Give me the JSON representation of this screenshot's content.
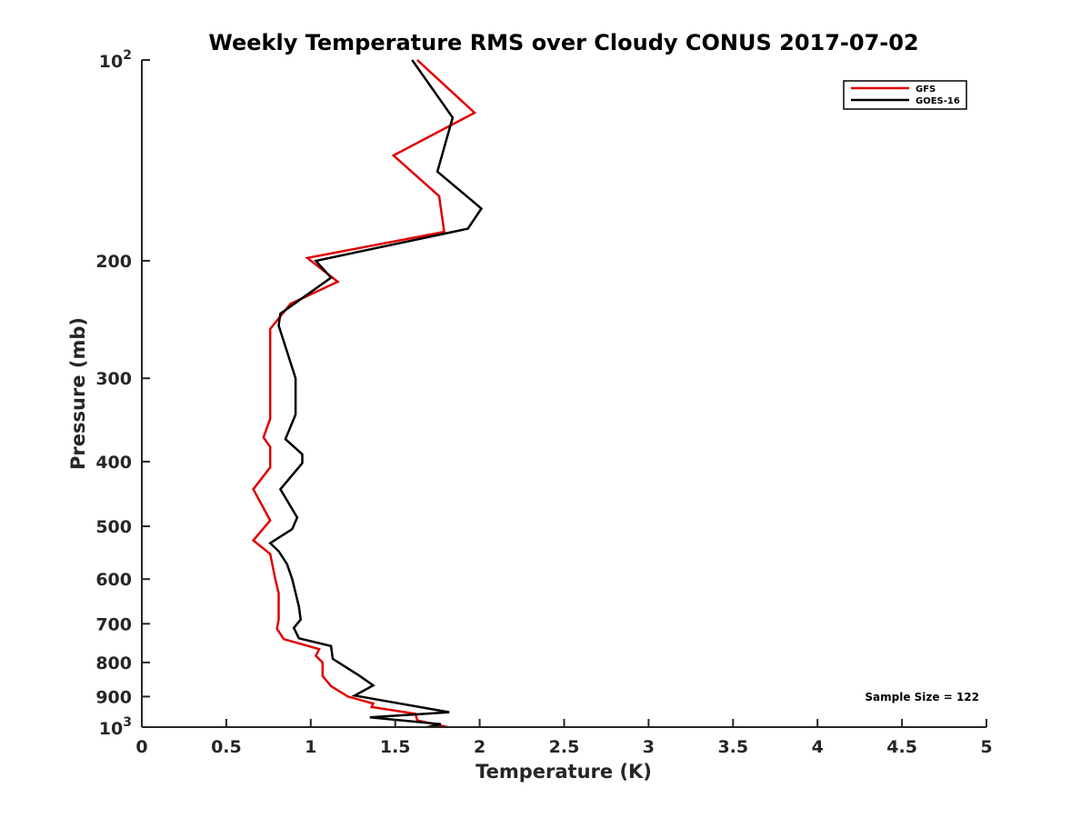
{
  "chart_data": {
    "type": "line",
    "title": "Weekly Temperature RMS over Cloudy CONUS 2017-07-02",
    "xlabel": "Temperature (K)",
    "ylabel": "Pressure (mb)",
    "xlim": [
      0,
      5
    ],
    "ylim": [
      100,
      1000
    ],
    "yscale": "log",
    "y_reversed": true,
    "x_ticks": [
      {
        "value": 0,
        "label": "0"
      },
      {
        "value": 0.5,
        "label": "0.5"
      },
      {
        "value": 1,
        "label": "1"
      },
      {
        "value": 1.5,
        "label": "1.5"
      },
      {
        "value": 2,
        "label": "2"
      },
      {
        "value": 2.5,
        "label": "2.5"
      },
      {
        "value": 3,
        "label": "3"
      },
      {
        "value": 3.5,
        "label": "3.5"
      },
      {
        "value": 4,
        "label": "4"
      },
      {
        "value": 4.5,
        "label": "4.5"
      },
      {
        "value": 5,
        "label": "5"
      }
    ],
    "y_ticks": [
      {
        "value": 100,
        "base": "10",
        "exp": "2"
      },
      {
        "value": 200,
        "label": "200"
      },
      {
        "value": 300,
        "label": "300"
      },
      {
        "value": 400,
        "label": "400"
      },
      {
        "value": 500,
        "label": "500"
      },
      {
        "value": 600,
        "label": "600"
      },
      {
        "value": 700,
        "label": "700"
      },
      {
        "value": 800,
        "label": "800"
      },
      {
        "value": 900,
        "label": "900"
      },
      {
        "value": 1000,
        "base": "10",
        "exp": "3"
      }
    ],
    "legend_position": "top-right",
    "annotation": "Sample Size = 122",
    "series": [
      {
        "name": "GFS",
        "color": "#e00000",
        "points": [
          [
            1.63,
            100
          ],
          [
            1.97,
            120
          ],
          [
            1.49,
            139
          ],
          [
            1.76,
            160
          ],
          [
            1.79,
            181
          ],
          [
            0.98,
            198
          ],
          [
            1.16,
            215
          ],
          [
            0.88,
            232
          ],
          [
            0.76,
            253
          ],
          [
            0.76,
            300
          ],
          [
            0.76,
            345
          ],
          [
            0.72,
            368
          ],
          [
            0.76,
            380
          ],
          [
            0.76,
            408
          ],
          [
            0.66,
            440
          ],
          [
            0.76,
            490
          ],
          [
            0.66,
            525
          ],
          [
            0.76,
            550
          ],
          [
            0.79,
            600
          ],
          [
            0.81,
            630
          ],
          [
            0.81,
            660
          ],
          [
            0.81,
            690
          ],
          [
            0.8,
            712
          ],
          [
            0.84,
            738
          ],
          [
            1.05,
            764
          ],
          [
            1.03,
            782
          ],
          [
            1.07,
            800
          ],
          [
            1.07,
            838
          ],
          [
            1.12,
            868
          ],
          [
            1.22,
            900
          ],
          [
            1.37,
            922
          ],
          [
            1.36,
            933
          ],
          [
            1.62,
            955
          ],
          [
            1.63,
            977
          ],
          [
            1.81,
            1000
          ]
        ]
      },
      {
        "name": "GOES-16",
        "color": "#000000",
        "points": [
          [
            1.6,
            100
          ],
          [
            1.84,
            122
          ],
          [
            1.75,
            147
          ],
          [
            2.01,
            167
          ],
          [
            1.93,
            179
          ],
          [
            1.03,
            200
          ],
          [
            1.12,
            212
          ],
          [
            0.82,
            240
          ],
          [
            0.81,
            250
          ],
          [
            0.91,
            300
          ],
          [
            0.91,
            340
          ],
          [
            0.85,
            370
          ],
          [
            0.95,
            390
          ],
          [
            0.95,
            402
          ],
          [
            0.82,
            440
          ],
          [
            0.92,
            485
          ],
          [
            0.89,
            505
          ],
          [
            0.76,
            530
          ],
          [
            0.81,
            545
          ],
          [
            0.86,
            570
          ],
          [
            0.89,
            600
          ],
          [
            0.93,
            660
          ],
          [
            0.94,
            690
          ],
          [
            0.9,
            710
          ],
          [
            0.93,
            736
          ],
          [
            1.12,
            756
          ],
          [
            1.13,
            790
          ],
          [
            1.29,
            838
          ],
          [
            1.37,
            866
          ],
          [
            1.26,
            897
          ],
          [
            1.82,
            950
          ],
          [
            1.35,
            967
          ],
          [
            1.77,
            990
          ],
          [
            1.69,
            1000
          ]
        ]
      }
    ]
  }
}
